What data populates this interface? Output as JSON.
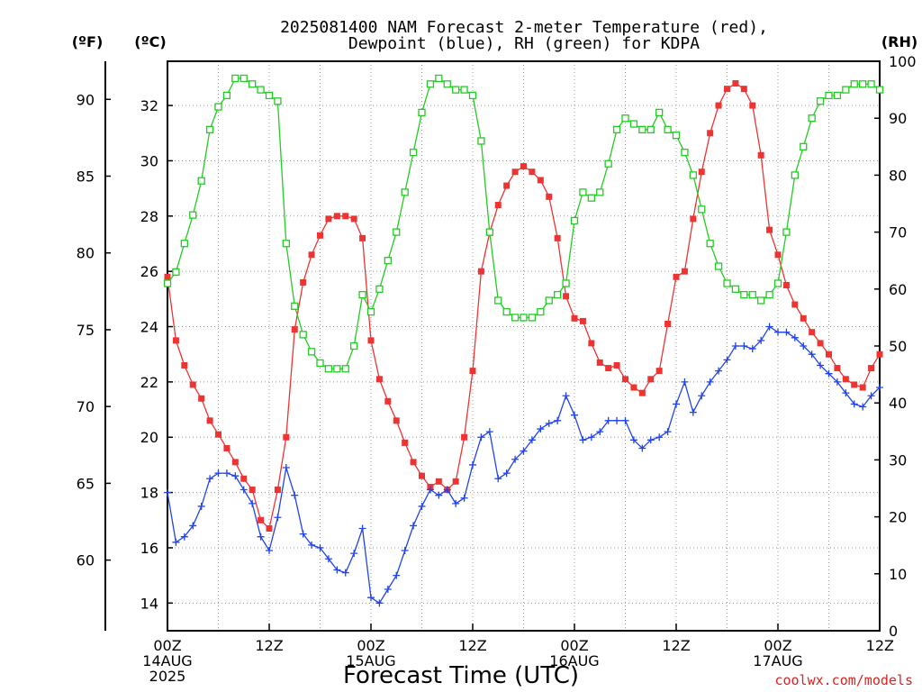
{
  "chart_data": {
    "type": "line",
    "title_line1": "2025081400 NAM Forecast 2-meter Temperature (red),",
    "title_line2": "Dewpoint (blue), RH (green) for KDPA",
    "xlabel": "Forecast Time (UTC)",
    "unit_labels": {
      "fahrenheit": "(ºF)",
      "celsius": "(ºC)",
      "rh": "(RH)"
    },
    "credit": "coolwx.com/models",
    "x_ticks": [
      {
        "hour": 0,
        "lines": [
          "00Z",
          "14AUG",
          "2025"
        ]
      },
      {
        "hour": 12,
        "lines": [
          "12Z"
        ]
      },
      {
        "hour": 24,
        "lines": [
          "00Z",
          "15AUG"
        ]
      },
      {
        "hour": 36,
        "lines": [
          "12Z"
        ]
      },
      {
        "hour": 48,
        "lines": [
          "00Z",
          "16AUG"
        ]
      },
      {
        "hour": 60,
        "lines": [
          "12Z"
        ]
      },
      {
        "hour": 72,
        "lines": [
          "00Z",
          "17AUG"
        ]
      },
      {
        "hour": 84,
        "lines": [
          "12Z"
        ]
      }
    ],
    "x_range_hours": [
      0,
      84
    ],
    "celsius_ticks": [
      "14",
      "16",
      "18",
      "20",
      "22",
      "24",
      "26",
      "28",
      "30",
      "32"
    ],
    "fahrenheit_ticks": [
      "60",
      "65",
      "70",
      "75",
      "80",
      "85",
      "90"
    ],
    "rh_ticks": [
      "0",
      "10",
      "20",
      "30",
      "40",
      "50",
      "60",
      "70",
      "80",
      "90",
      "100"
    ],
    "celsius_range": [
      13.0,
      33.6
    ],
    "rh_range": [
      0,
      100
    ],
    "grid": true,
    "series": [
      {
        "color": "#ee3333",
        "marker": "filled-square",
        "axis": "celsius",
        "x": [
          0,
          1,
          2,
          3,
          4,
          5,
          6,
          7,
          8,
          9,
          10,
          11,
          12,
          13,
          14,
          15,
          16,
          17,
          18,
          19,
          20,
          21,
          22,
          23,
          24,
          25,
          26,
          27,
          28,
          29,
          30,
          31,
          32,
          33,
          34,
          35,
          36,
          37,
          38,
          39,
          40,
          41,
          42,
          43,
          44,
          45,
          46,
          47,
          48,
          49,
          50,
          51,
          52,
          53,
          54,
          55,
          56,
          57,
          58,
          59,
          60,
          61,
          62,
          63,
          64,
          65,
          66,
          67,
          68,
          69,
          70,
          71,
          72,
          73,
          74,
          75,
          76,
          77,
          78,
          79,
          80,
          81,
          82,
          83,
          84
        ],
        "values": [
          25.8,
          23.5,
          22.6,
          21.9,
          21.4,
          20.6,
          20.1,
          19.6,
          19.1,
          18.5,
          18.1,
          17.0,
          16.7,
          18.1,
          20.0,
          23.9,
          25.6,
          26.6,
          27.3,
          27.9,
          28.0,
          28.0,
          27.9,
          27.2,
          23.5,
          22.1,
          21.3,
          20.6,
          19.8,
          19.1,
          18.6,
          18.2,
          18.4,
          18.1,
          18.4,
          20.0,
          22.4,
          26.0,
          27.4,
          28.4,
          29.1,
          29.6,
          29.8,
          29.6,
          29.3,
          28.7,
          27.2,
          25.1,
          24.3,
          24.2,
          23.4,
          22.7,
          22.5,
          22.6,
          22.1,
          21.8,
          21.6,
          22.1,
          22.4,
          24.1,
          25.8,
          26.0,
          27.9,
          29.6,
          31.0,
          32.0,
          32.6,
          32.8,
          32.6,
          32.0,
          30.2,
          27.5,
          26.6,
          25.5,
          24.8,
          24.3,
          23.8,
          23.4,
          23.0,
          22.5,
          22.1,
          21.9,
          21.8,
          22.5,
          23.0
        ]
      },
      {
        "color": "#2244ee",
        "marker": "plus",
        "axis": "celsius",
        "x": [
          0,
          1,
          2,
          3,
          4,
          5,
          6,
          7,
          8,
          9,
          10,
          11,
          12,
          13,
          14,
          15,
          16,
          17,
          18,
          19,
          20,
          21,
          22,
          23,
          24,
          25,
          26,
          27,
          28,
          29,
          30,
          31,
          32,
          33,
          34,
          35,
          36,
          37,
          38,
          39,
          40,
          41,
          42,
          43,
          44,
          45,
          46,
          47,
          48,
          49,
          50,
          51,
          52,
          53,
          54,
          55,
          56,
          57,
          58,
          59,
          60,
          61,
          62,
          63,
          64,
          65,
          66,
          67,
          68,
          69,
          70,
          71,
          72,
          73,
          74,
          75,
          76,
          77,
          78,
          79,
          80,
          81,
          82,
          83,
          84
        ],
        "values": [
          18.0,
          16.2,
          16.4,
          16.8,
          17.5,
          18.5,
          18.7,
          18.7,
          18.6,
          18.1,
          17.6,
          16.4,
          15.9,
          17.1,
          18.9,
          17.9,
          16.5,
          16.1,
          16.0,
          15.6,
          15.2,
          15.1,
          15.8,
          16.7,
          14.2,
          14.0,
          14.5,
          15.0,
          15.9,
          16.8,
          17.5,
          18.1,
          17.9,
          18.1,
          17.6,
          17.8,
          19.0,
          20.0,
          20.2,
          18.5,
          18.7,
          19.2,
          19.5,
          19.9,
          20.3,
          20.5,
          20.6,
          21.5,
          20.8,
          19.9,
          20.0,
          20.2,
          20.6,
          20.6,
          20.6,
          19.9,
          19.6,
          19.9,
          20.0,
          20.2,
          21.2,
          22.0,
          20.9,
          21.5,
          22.0,
          22.4,
          22.8,
          23.3,
          23.3,
          23.2,
          23.5,
          24.0,
          23.8,
          23.8,
          23.6,
          23.3,
          23.0,
          22.6,
          22.3,
          22.0,
          21.6,
          21.2,
          21.1,
          21.5,
          21.8
        ]
      },
      {
        "color": "#22cc22",
        "marker": "open-square",
        "axis": "rh",
        "x": [
          0,
          1,
          2,
          3,
          4,
          5,
          6,
          7,
          8,
          9,
          10,
          11,
          12,
          13,
          14,
          15,
          16,
          17,
          18,
          19,
          20,
          21,
          22,
          23,
          24,
          25,
          26,
          27,
          28,
          29,
          30,
          31,
          32,
          33,
          34,
          35,
          36,
          37,
          38,
          39,
          40,
          41,
          42,
          43,
          44,
          45,
          46,
          47,
          48,
          49,
          50,
          51,
          52,
          53,
          54,
          55,
          56,
          57,
          58,
          59,
          60,
          61,
          62,
          63,
          64,
          65,
          66,
          67,
          68,
          69,
          70,
          71,
          72,
          73,
          74,
          75,
          76,
          77,
          78,
          79,
          80,
          81,
          82,
          83,
          84
        ],
        "values": [
          61,
          63,
          68,
          73,
          79,
          88,
          92,
          94,
          97,
          97,
          96,
          95,
          94,
          93,
          68,
          57,
          52,
          49,
          47,
          46,
          46,
          46,
          50,
          59,
          56,
          60,
          65,
          70,
          77,
          84,
          91,
          96,
          97,
          96,
          95,
          95,
          94,
          86,
          70,
          58,
          56,
          55,
          55,
          55,
          56,
          58,
          59,
          61,
          72,
          77,
          76,
          77,
          82,
          88,
          90,
          89,
          88,
          88,
          91,
          88,
          87,
          84,
          80,
          74,
          68,
          64,
          61,
          60,
          59,
          59,
          58,
          59,
          61,
          70,
          80,
          85,
          90,
          93,
          94,
          94,
          95,
          96,
          96,
          96,
          95
        ]
      }
    ]
  }
}
